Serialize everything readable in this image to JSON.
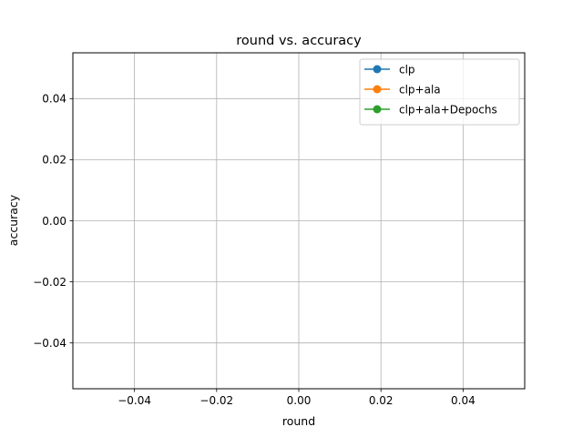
{
  "chart_data": {
    "type": "line",
    "title": "round vs. accuracy",
    "xlabel": "round",
    "ylabel": "accuracy",
    "xlim": [
      -0.055,
      0.055
    ],
    "ylim": [
      -0.055,
      0.055
    ],
    "xticks": [
      -0.04,
      -0.02,
      0.0,
      0.02,
      0.04
    ],
    "xtick_labels": [
      "−0.04",
      "−0.02",
      "0.00",
      "0.02",
      "0.04"
    ],
    "yticks": [
      -0.04,
      -0.02,
      0.0,
      0.02,
      0.04
    ],
    "ytick_labels": [
      "−0.04",
      "−0.02",
      "0.00",
      "0.02",
      "0.04"
    ],
    "grid": true,
    "legend_position": "top-right",
    "series": [
      {
        "name": "clp",
        "color": "#1f77b4",
        "marker": "circle",
        "x": [],
        "y": []
      },
      {
        "name": "clp+ala",
        "color": "#ff7f0e",
        "marker": "circle",
        "x": [],
        "y": []
      },
      {
        "name": "clp+ala+Depochs",
        "color": "#2ca02c",
        "marker": "circle",
        "x": [],
        "y": []
      }
    ]
  }
}
